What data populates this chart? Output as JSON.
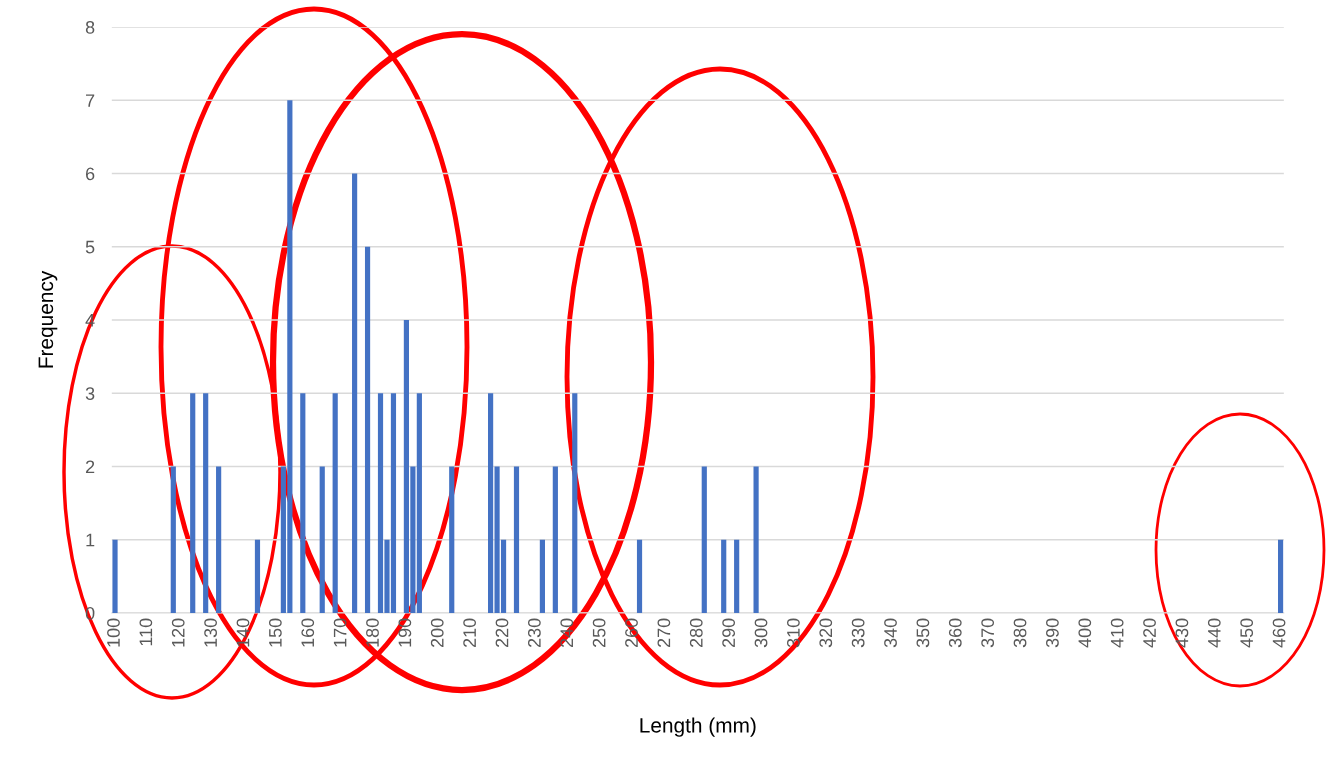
{
  "chart_data": {
    "type": "bar",
    "xlabel": "Length (mm)",
    "ylabel": "Frequency",
    "color": "#4472c4",
    "x": [
      100,
      118,
      124,
      128,
      132,
      144,
      152,
      154,
      158,
      164,
      168,
      174,
      178,
      182,
      184,
      186,
      190,
      192,
      194,
      204,
      216,
      218,
      220,
      224,
      232,
      236,
      242,
      262,
      282,
      288,
      292,
      298,
      460
    ],
    "values": [
      1,
      2,
      3,
      3,
      2,
      1,
      2,
      7,
      3,
      2,
      3,
      6,
      5,
      3,
      1,
      3,
      4,
      2,
      3,
      2,
      3,
      2,
      1,
      2,
      1,
      2,
      3,
      1,
      2,
      1,
      1,
      2,
      1
    ],
    "xlim": [
      99,
      461
    ],
    "xticks": [
      100,
      110,
      120,
      130,
      140,
      150,
      160,
      170,
      180,
      190,
      200,
      210,
      220,
      230,
      240,
      250,
      260,
      270,
      280,
      290,
      300,
      310,
      320,
      330,
      340,
      350,
      360,
      370,
      380,
      390,
      400,
      410,
      420,
      430,
      440,
      450,
      460
    ],
    "ylim": [
      0,
      8
    ],
    "yticks": [
      0,
      1,
      2,
      3,
      4,
      5,
      6,
      7,
      8
    ],
    "grid": "y"
  }
}
